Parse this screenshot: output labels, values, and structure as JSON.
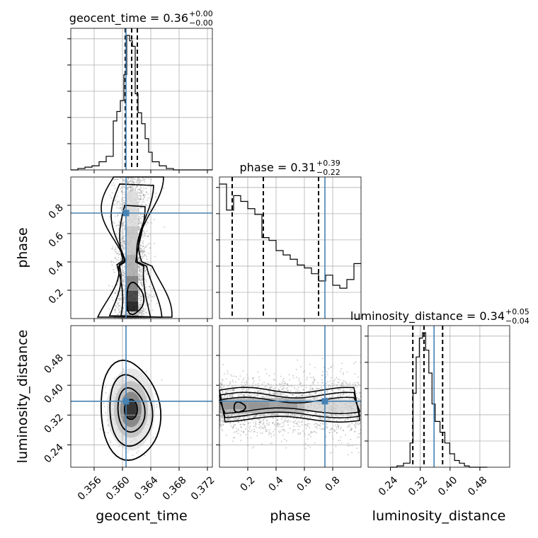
{
  "chart_data": {
    "type": "corner",
    "parameters": [
      "geocent_time",
      "phase",
      "luminosity_distance"
    ],
    "axis_labels": {
      "geocent_time": "geocent_time",
      "phase": "phase",
      "luminosity_distance": "luminosity_distance"
    },
    "titles": [
      {
        "param": "geocent_time",
        "text": "geocent_time = 0.36",
        "plus": "+0.00",
        "minus": "−0.00"
      },
      {
        "param": "phase",
        "text": "phase = 0.31",
        "plus": "+0.39",
        "minus": "−0.22"
      },
      {
        "param": "luminosity_distance",
        "text": "luminosity_distance = 0.34",
        "plus": "+0.05",
        "minus": "−0.04"
      }
    ],
    "ranges": {
      "geocent_time": [
        0.3527,
        0.3727
      ],
      "phase": [
        0.0,
        1.0
      ],
      "luminosity_distance": [
        0.18,
        0.56
      ]
    },
    "ticks": {
      "geocent_time": [
        {
          "v": 0.356,
          "label": "0.356"
        },
        {
          "v": 0.36,
          "label": "0.360"
        },
        {
          "v": 0.364,
          "label": "0.364"
        },
        {
          "v": 0.368,
          "label": "0.368"
        },
        {
          "v": 0.372,
          "label": "0.372"
        }
      ],
      "phase": [
        {
          "v": 0.2,
          "label": "0.2"
        },
        {
          "v": 0.4,
          "label": "0.4"
        },
        {
          "v": 0.6,
          "label": "0.6"
        },
        {
          "v": 0.8,
          "label": "0.8"
        }
      ],
      "luminosity_distance": [
        {
          "v": 0.24,
          "label": "0.24"
        },
        {
          "v": 0.32,
          "label": "0.32"
        },
        {
          "v": 0.4,
          "label": "0.40"
        },
        {
          "v": 0.48,
          "label": "0.48"
        }
      ]
    },
    "quantiles": {
      "geocent_time": [
        0.3604,
        0.3613,
        0.3621
      ],
      "phase": [
        0.09,
        0.31,
        0.7
      ],
      "luminosity_distance": [
        0.3,
        0.33,
        0.38
      ]
    },
    "truths": {
      "geocent_time": 0.3605,
      "phase": 0.745,
      "luminosity_distance": 0.357
    },
    "histograms": {
      "geocent_time": {
        "edges": [
          0.3527,
          0.3537,
          0.3547,
          0.3557,
          0.3567,
          0.3577,
          0.3587,
          0.3592,
          0.3597,
          0.3602,
          0.3606,
          0.361,
          0.3614,
          0.3618,
          0.3622,
          0.3627,
          0.3632,
          0.3637,
          0.3642,
          0.3652,
          0.3662,
          0.3672,
          0.3727
        ],
        "counts": [
          0,
          1,
          2,
          3,
          6,
          10,
          36,
          43,
          51,
          70,
          99,
          95,
          91,
          56,
          42,
          34,
          23,
          13,
          6,
          3,
          1,
          0
        ]
      },
      "phase": {
        "edges": [
          0.0,
          0.05,
          0.1,
          0.15,
          0.2,
          0.25,
          0.3,
          0.35,
          0.4,
          0.45,
          0.5,
          0.55,
          0.6,
          0.65,
          0.7,
          0.75,
          0.8,
          0.85,
          0.9,
          0.95,
          1.0
        ],
        "counts": [
          93,
          75,
          85,
          81,
          76,
          72,
          56,
          54,
          47,
          44,
          41,
          37,
          35,
          31,
          26,
          30,
          23,
          21,
          27,
          38
        ]
      },
      "luminosity_distance": {
        "edges": [
          0.24,
          0.2575,
          0.275,
          0.2925,
          0.3005,
          0.309,
          0.3175,
          0.326,
          0.3345,
          0.343,
          0.3515,
          0.36,
          0.373,
          0.386,
          0.399,
          0.412,
          0.425,
          0.4385,
          0.4515,
          0.4645,
          0.479,
          0.5
        ],
        "counts": [
          0,
          1,
          3,
          18,
          55,
          82,
          96,
          100,
          87,
          70,
          47,
          34,
          26,
          18,
          10,
          5,
          3,
          1,
          0,
          0,
          0
        ]
      }
    },
    "samples_2d": [
      {
        "x": "geocent_time",
        "y": "phase",
        "x_center": 0.3614,
        "x_sd": 0.0011,
        "x_correlation_with_y": 0.0
      },
      {
        "x": "geocent_time",
        "y": "luminosity_distance",
        "x_center": 0.3612,
        "x_sd": 0.0012,
        "y_center": 0.335,
        "y_sd": 0.036
      },
      {
        "x": "phase",
        "y": "luminosity_distance",
        "y_center": 0.345,
        "y_sd": 0.033
      }
    ],
    "grid": true,
    "legend": "none"
  }
}
